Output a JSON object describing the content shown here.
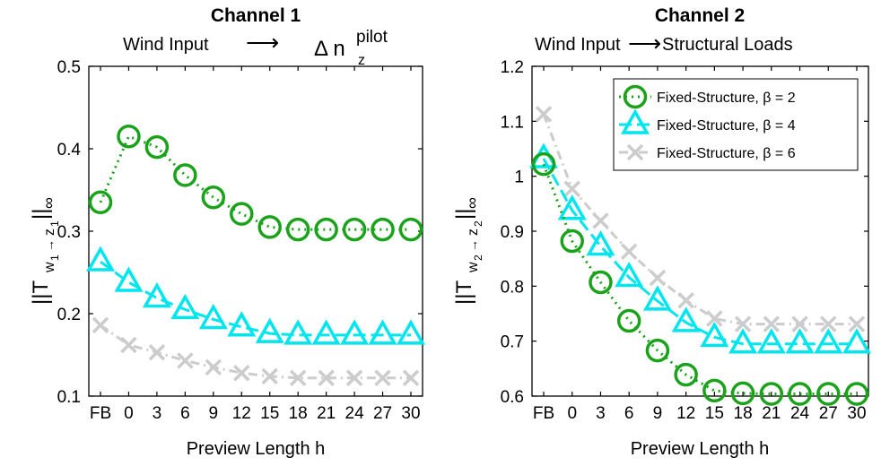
{
  "chart_data": [
    {
      "type": "line",
      "title": "Channel 1",
      "subtitle": {
        "left": "Wind Input",
        "arrow": "⟶",
        "right_symbol": "Δ n",
        "right_sub": "z",
        "right_sup": "pilot"
      },
      "xlabel": "Preview Length h",
      "ylabel": {
        "main": "||T",
        "sub1": "w",
        "sub1b": "1",
        "arrow": "→",
        "sub2": "z",
        "sub2b": "1",
        "close": "||",
        "inf": "∞"
      },
      "categories": [
        "FB",
        "0",
        "3",
        "6",
        "9",
        "12",
        "15",
        "18",
        "21",
        "24",
        "27",
        "30"
      ],
      "ylim": [
        0.1,
        0.5
      ],
      "yticks": [
        "0.1",
        "0.2",
        "0.3",
        "0.4",
        "0.5"
      ],
      "series": [
        {
          "values": [
            0.335,
            0.415,
            0.402,
            0.368,
            0.341,
            0.321,
            0.305,
            0.302,
            0.302,
            0.302,
            0.302,
            0.302
          ]
        },
        {
          "values": [
            0.263,
            0.238,
            0.219,
            0.205,
            0.193,
            0.184,
            0.176,
            0.174,
            0.174,
            0.174,
            0.174,
            0.174
          ]
        },
        {
          "values": [
            0.186,
            0.162,
            0.153,
            0.143,
            0.135,
            0.128,
            0.124,
            0.122,
            0.122,
            0.122,
            0.122,
            0.122
          ]
        }
      ]
    },
    {
      "type": "line",
      "title": "Channel 2",
      "subtitle": {
        "left": "Wind Input",
        "arrow": "⟶",
        "right": "Structural Loads"
      },
      "xlabel": "Preview Length h",
      "ylabel": {
        "main": "||T",
        "sub1": "w",
        "sub1b": "2",
        "arrow": "→",
        "sub2": "z",
        "sub2b": "2",
        "close": "||",
        "inf": "∞"
      },
      "categories": [
        "FB",
        "0",
        "3",
        "6",
        "9",
        "12",
        "15",
        "18",
        "21",
        "24",
        "27",
        "30"
      ],
      "ylim": [
        0.6,
        1.2
      ],
      "yticks": [
        "0.6",
        "0.7",
        "0.8",
        "0.9",
        "1",
        "1.1",
        "1.2"
      ],
      "legend_position": "top-right",
      "series": [
        {
          "name": "Fixed-Structure, β = 2",
          "values": [
            1.022,
            0.882,
            0.807,
            0.737,
            0.683,
            0.639,
            0.61,
            0.605,
            0.604,
            0.604,
            0.604,
            0.604
          ]
        },
        {
          "name": "Fixed-Structure, β = 4",
          "values": [
            1.032,
            0.938,
            0.873,
            0.816,
            0.773,
            0.734,
            0.707,
            0.695,
            0.695,
            0.695,
            0.695,
            0.695
          ]
        },
        {
          "name": "Fixed-Structure, β = 6",
          "values": [
            1.113,
            0.977,
            0.919,
            0.863,
            0.815,
            0.774,
            0.741,
            0.731,
            0.731,
            0.731,
            0.731,
            0.731
          ]
        }
      ]
    }
  ],
  "styles": {
    "colors": [
      "#1aa31a",
      "#00e5ee",
      "#cccccc"
    ],
    "markers": [
      "circle",
      "triangle",
      "x"
    ],
    "dashes": [
      "2 5",
      "14 6",
      "10 5 2 5"
    ],
    "axis_color": "#000000"
  }
}
